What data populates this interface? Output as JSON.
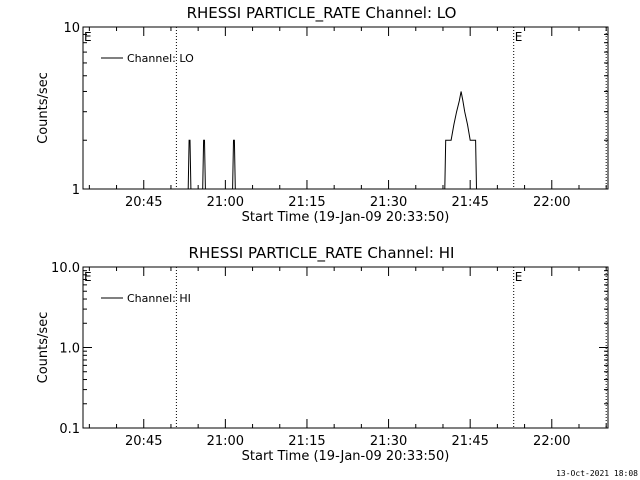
{
  "footer": {
    "timestamp": "13-Oct-2021 18:08"
  },
  "chart_data": [
    {
      "type": "line",
      "title": "RHESSI PARTICLE_RATE Channel: LO",
      "xlabel": "Start Time (19-Jan-09 20:33:50)",
      "ylabel": "Counts/sec",
      "yscale": "log",
      "ylim": [
        1,
        10
      ],
      "xlim": [
        "20:33:50",
        "22:10:20"
      ],
      "yticks": [
        "1",
        "10"
      ],
      "xticks": [
        "20:45",
        "21:00",
        "21:15",
        "21:30",
        "21:45",
        "22:00"
      ],
      "vlines": [
        "20:51:00",
        "21:53:00",
        "22:10:00"
      ],
      "vline_labels": [
        {
          "at": "20:33:50",
          "text": "E"
        },
        {
          "at": "21:53:00",
          "text": "E"
        }
      ],
      "legend": {
        "position": "top-left",
        "entries": [
          "Channel: LO"
        ]
      },
      "series": [
        {
          "name": "Channel: LO",
          "points": [
            [
              "20:53:10",
              1
            ],
            [
              "20:53:20",
              2
            ],
            [
              "20:53:30",
              2
            ],
            [
              "20:53:40",
              1
            ],
            [
              "20:55:50",
              1
            ],
            [
              "20:56:00",
              2
            ],
            [
              "20:56:10",
              2
            ],
            [
              "20:56:20",
              1
            ],
            [
              "21:01:20",
              1
            ],
            [
              "21:01:30",
              2
            ],
            [
              "21:01:40",
              2
            ],
            [
              "21:01:50",
              1
            ],
            [
              "21:40:20",
              1
            ],
            [
              "21:40:30",
              2
            ],
            [
              "21:41:30",
              2
            ],
            [
              "21:42:00",
              2.5
            ],
            [
              "21:42:30",
              3
            ],
            [
              "21:43:00",
              3.5
            ],
            [
              "21:43:20",
              4
            ],
            [
              "21:43:40",
              3.5
            ],
            [
              "21:44:00",
              3
            ],
            [
              "21:44:30",
              2.5
            ],
            [
              "21:45:00",
              2
            ],
            [
              "21:46:00",
              2
            ],
            [
              "21:46:10",
              1
            ]
          ]
        }
      ]
    },
    {
      "type": "line",
      "title": "RHESSI PARTICLE_RATE Channel: HI",
      "xlabel": "Start Time (19-Jan-09 20:33:50)",
      "ylabel": "Counts/sec",
      "yscale": "log",
      "ylim": [
        0.1,
        10
      ],
      "xlim": [
        "20:33:50",
        "22:10:20"
      ],
      "yticks": [
        "0.1",
        "1.0",
        "10.0"
      ],
      "xticks": [
        "20:45",
        "21:00",
        "21:15",
        "21:30",
        "21:45",
        "22:00"
      ],
      "vlines": [
        "20:51:00",
        "21:53:00",
        "22:10:00"
      ],
      "vline_labels": [
        {
          "at": "20:33:50",
          "text": "E"
        },
        {
          "at": "21:53:00",
          "text": "E"
        }
      ],
      "legend": {
        "position": "top-left",
        "entries": [
          "Channel: HI"
        ]
      },
      "series": [
        {
          "name": "Channel: HI",
          "points": []
        }
      ]
    }
  ]
}
